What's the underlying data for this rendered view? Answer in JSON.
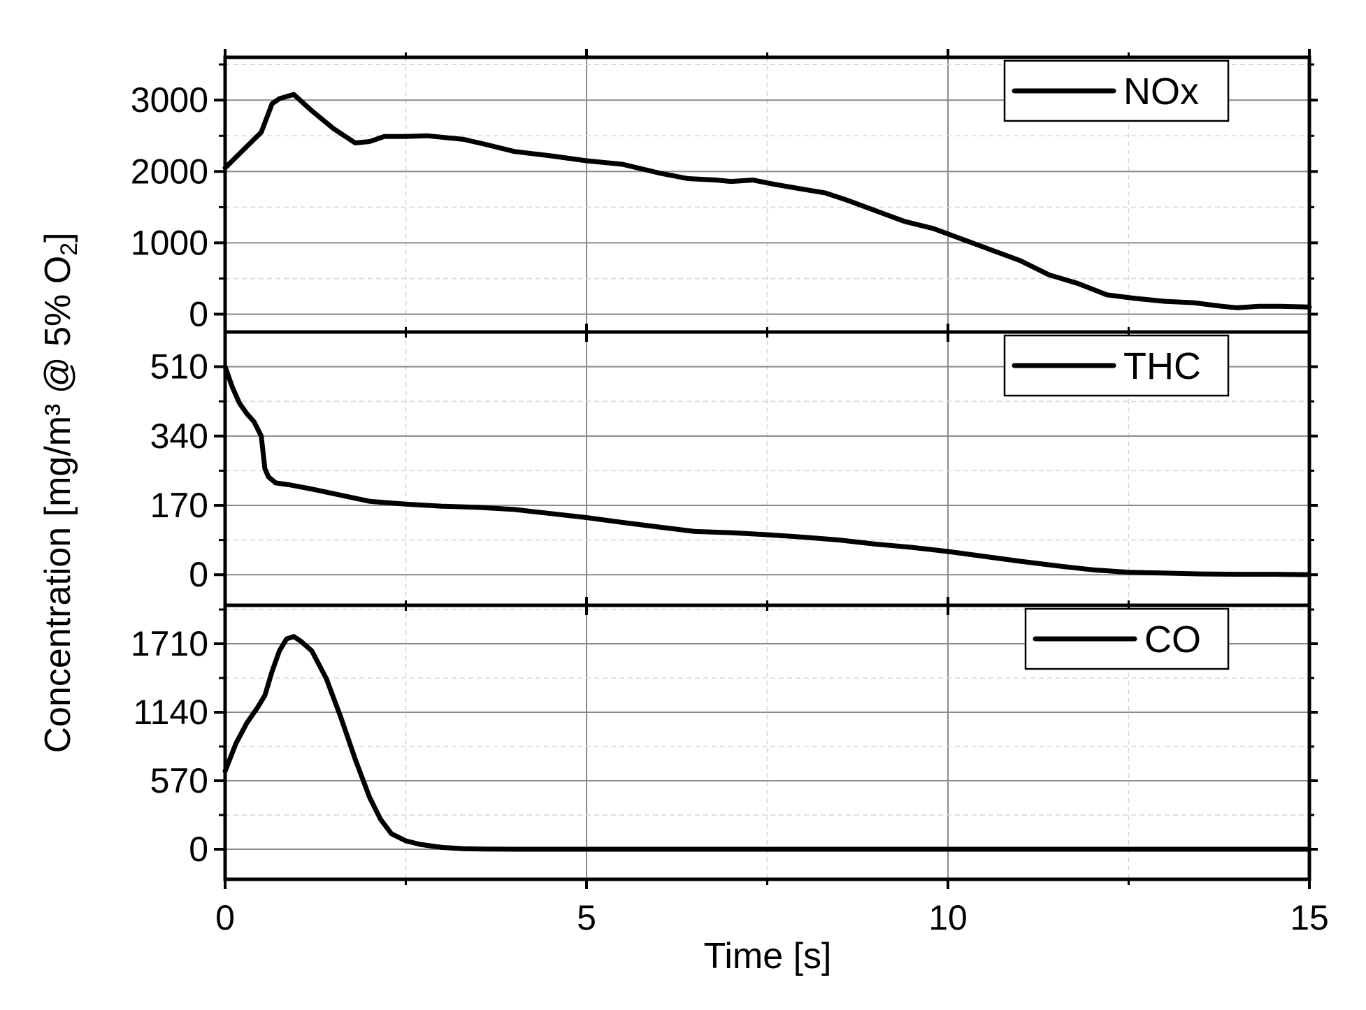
{
  "chart_data": {
    "type": "line",
    "layout": "stacked",
    "xlabel": "Time [s]",
    "ylabel": "Concentration [mg/m³ @ 5% O",
    "ylabel_subscript": "2",
    "ylabel_suffix": "]",
    "xlim": [
      0,
      15
    ],
    "xticks": [
      0,
      5,
      10,
      15
    ],
    "xtick_labels": [
      "0",
      "5",
      "10",
      "15"
    ],
    "grid": true,
    "line_color": "#000000",
    "panels": [
      {
        "name": "NOx",
        "legend": "NOx",
        "legend_position": "top-right",
        "ylim": [
          -250,
          3600
        ],
        "yticks": [
          0,
          1000,
          2000,
          3000
        ],
        "ytick_labels": [
          "0",
          "1000",
          "2000",
          "3000"
        ],
        "x": [
          0,
          0.3,
          0.5,
          0.65,
          0.75,
          0.95,
          1.2,
          1.5,
          1.8,
          2.0,
          2.2,
          2.5,
          2.8,
          3.0,
          3.3,
          3.6,
          4.0,
          4.5,
          5.0,
          5.5,
          6.0,
          6.4,
          6.8,
          7.0,
          7.3,
          7.6,
          8.0,
          8.3,
          8.6,
          9.0,
          9.4,
          9.8,
          10.2,
          10.6,
          11.0,
          11.4,
          11.8,
          12.2,
          12.6,
          13.0,
          13.4,
          13.8,
          14.0,
          14.3,
          14.6,
          15.0
        ],
        "y": [
          2050,
          2350,
          2550,
          2950,
          3020,
          3080,
          2850,
          2600,
          2400,
          2420,
          2490,
          2490,
          2500,
          2480,
          2450,
          2380,
          2280,
          2220,
          2150,
          2100,
          1980,
          1900,
          1880,
          1860,
          1880,
          1820,
          1750,
          1700,
          1600,
          1450,
          1300,
          1200,
          1050,
          900,
          750,
          550,
          430,
          270,
          220,
          180,
          160,
          110,
          90,
          110,
          110,
          100
        ]
      },
      {
        "name": "THC",
        "legend": "THC",
        "legend_position": "top-right",
        "ylim": [
          -75,
          595
        ],
        "yticks": [
          0,
          170,
          340,
          510
        ],
        "ytick_labels": [
          "0",
          "170",
          "340",
          "510"
        ],
        "x": [
          0,
          0.1,
          0.2,
          0.3,
          0.4,
          0.5,
          0.55,
          0.6,
          0.7,
          0.9,
          1.2,
          1.6,
          2.0,
          2.5,
          3.0,
          3.5,
          4.0,
          4.5,
          5.0,
          5.5,
          6.0,
          6.5,
          7.0,
          7.5,
          8.0,
          8.5,
          9.0,
          9.5,
          10.0,
          10.5,
          11.0,
          11.5,
          12.0,
          12.5,
          13.0,
          13.5,
          14.0,
          14.5,
          15.0
        ],
        "y": [
          510,
          460,
          420,
          395,
          375,
          340,
          260,
          240,
          225,
          220,
          210,
          195,
          180,
          173,
          168,
          165,
          160,
          150,
          140,
          128,
          117,
          106,
          103,
          98,
          92,
          85,
          75,
          67,
          57,
          45,
          33,
          22,
          12,
          6,
          4,
          2,
          1,
          1,
          0
        ]
      },
      {
        "name": "CO",
        "legend": "CO",
        "legend_position": "top-right",
        "ylim": [
          -250,
          2030
        ],
        "yticks": [
          0,
          570,
          1140,
          1710
        ],
        "ytick_labels": [
          "0",
          "570",
          "1140",
          "1710"
        ],
        "x": [
          0,
          0.15,
          0.3,
          0.45,
          0.55,
          0.65,
          0.75,
          0.85,
          0.95,
          1.05,
          1.2,
          1.4,
          1.6,
          1.8,
          2.0,
          2.15,
          2.3,
          2.5,
          2.7,
          3.0,
          3.3,
          3.6,
          4.0,
          5.0,
          7.0,
          10.0,
          15.0
        ],
        "y": [
          650,
          880,
          1050,
          1180,
          1280,
          1480,
          1650,
          1750,
          1770,
          1730,
          1650,
          1420,
          1100,
          750,
          430,
          250,
          130,
          70,
          40,
          15,
          5,
          2,
          0,
          0,
          0,
          0,
          0
        ]
      }
    ]
  }
}
